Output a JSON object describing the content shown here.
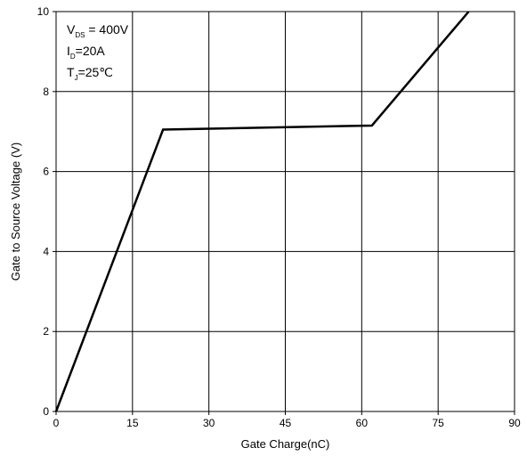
{
  "chart_data": {
    "type": "line",
    "xlabel": "Gate Charge(nC)",
    "ylabel": "Gate to Source Voltage (V)",
    "xlim": [
      0,
      90
    ],
    "ylim": [
      0,
      10
    ],
    "x_ticks": [
      0,
      15,
      30,
      45,
      60,
      75,
      90
    ],
    "y_ticks": [
      0,
      2,
      4,
      6,
      8,
      10
    ],
    "grid": true,
    "series": [
      {
        "color": "#000000",
        "x": [
          0,
          21,
          62,
          81
        ],
        "y": [
          0,
          7.05,
          7.15,
          10
        ]
      }
    ],
    "annotations": [
      {
        "main": "V",
        "sub": "DS",
        "rest": " = 400V"
      },
      {
        "main": "I",
        "sub": "D",
        "rest": "=20A"
      },
      {
        "main": "T",
        "sub": "J",
        "rest": "=25℃"
      }
    ]
  }
}
